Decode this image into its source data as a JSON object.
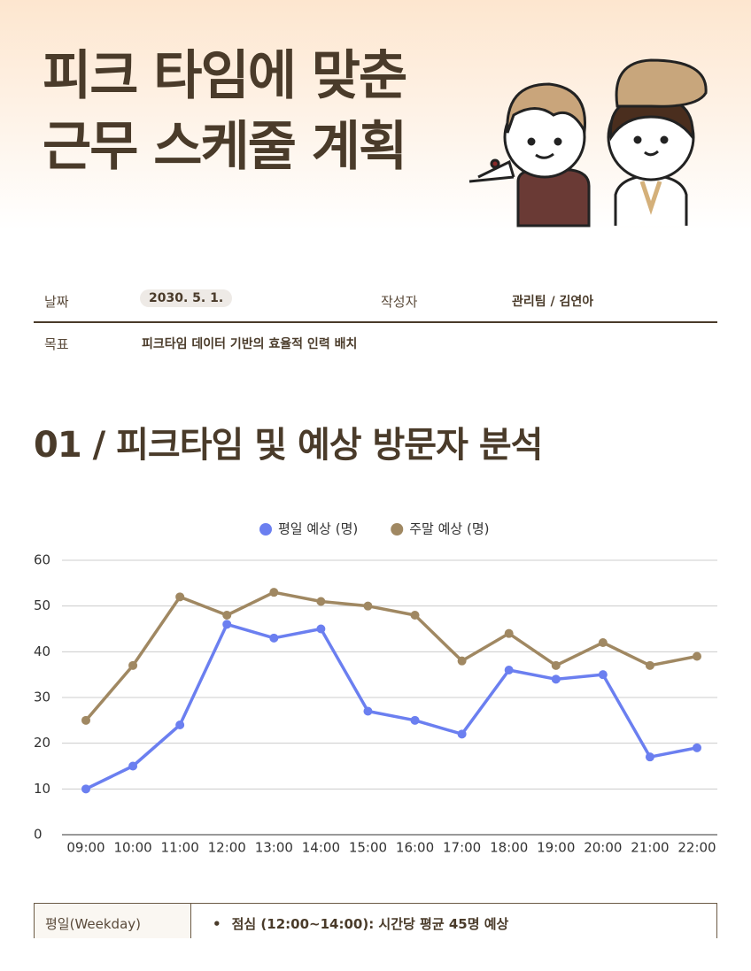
{
  "header": {
    "title": [
      "피크 타임에 맞춘",
      "근무 스케줄 계획"
    ]
  },
  "info": {
    "date_label": "날짜",
    "date": "2030. 5. 1.",
    "author_label": "작성자",
    "author": "관리팀 / 김연아",
    "goal_label": "목표",
    "goal": "피크타임 데이터 기반의 효율적 인력 배치"
  },
  "section": {
    "title": "01 / 피크타임 및 예상 방문자 분석"
  },
  "chart_data": {
    "type": "line",
    "categories": [
      "09:00",
      "10:00",
      "11:00",
      "12:00",
      "13:00",
      "14:00",
      "15:00",
      "16:00",
      "17:00",
      "18:00",
      "19:00",
      "20:00",
      "21:00",
      "22:00"
    ],
    "series": [
      {
        "name": "평일 예상 (명)",
        "color": "#6b7ff0",
        "values": [
          10,
          15,
          24,
          46,
          43,
          45,
          27,
          25,
          22,
          36,
          34,
          35,
          17,
          19
        ]
      },
      {
        "name": "주말 예상 (명)",
        "color": "#a08862",
        "values": [
          25,
          37,
          52,
          48,
          53,
          51,
          50,
          48,
          38,
          44,
          37,
          42,
          37,
          39
        ]
      }
    ],
    "ylim": [
      0,
      60
    ],
    "yticks": [
      0,
      10,
      20,
      30,
      40,
      50,
      60
    ],
    "grid": true,
    "legend": "top"
  },
  "table": {
    "rows": [
      [
        "평일(Weekday)",
        "점심 (12:00~14:00): 시간당 평균 45명 예상"
      ]
    ]
  }
}
